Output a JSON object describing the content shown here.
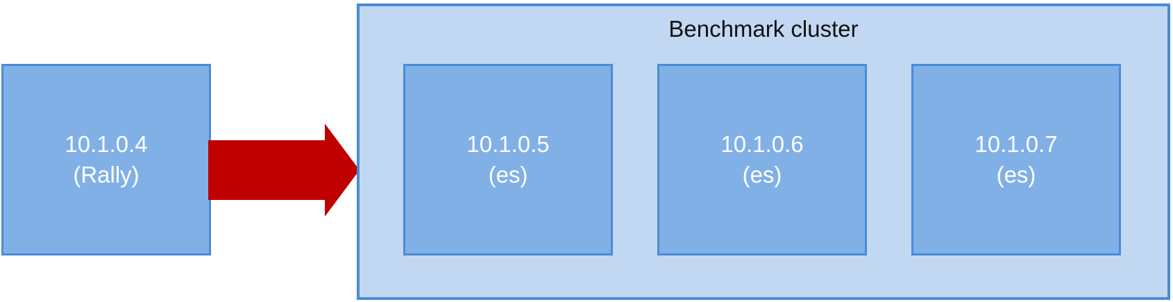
{
  "client": {
    "ip": "10.1.0.4",
    "role": "(Rally)"
  },
  "cluster": {
    "title": "Benchmark cluster",
    "nodes": [
      {
        "ip": "10.1.0.5",
        "role": "(es)"
      },
      {
        "ip": "10.1.0.6",
        "role": "(es)"
      },
      {
        "ip": "10.1.0.7",
        "role": "(es)"
      }
    ]
  },
  "colors": {
    "node_fill": "#80b0e5",
    "node_border": "#4a8bd8",
    "cluster_fill": "#c2d8f2",
    "arrow": "#c00000"
  }
}
